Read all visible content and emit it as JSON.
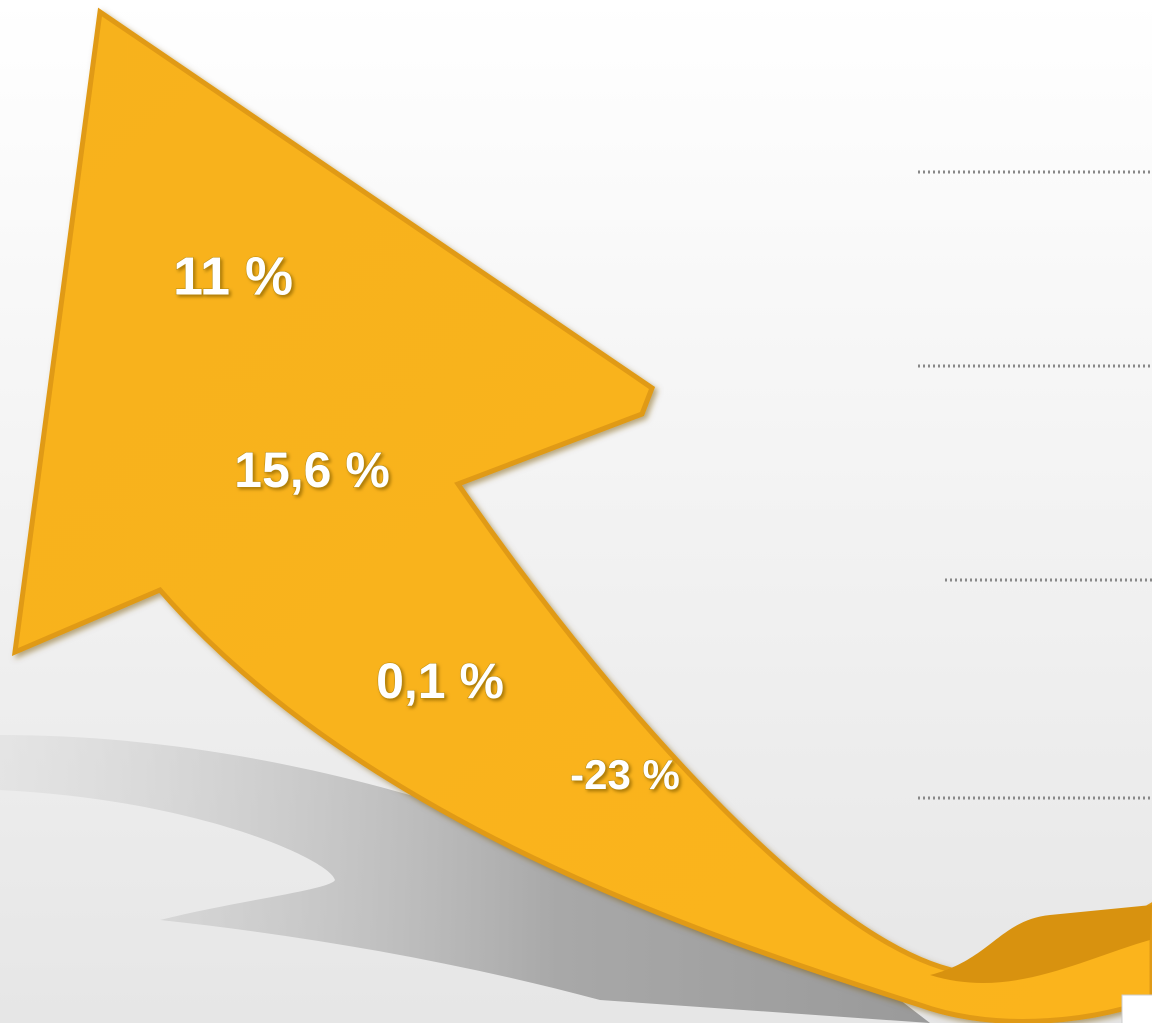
{
  "labels": [
    "11 %",
    "15,6 %",
    "0,1 %",
    "-23 %"
  ]
}
